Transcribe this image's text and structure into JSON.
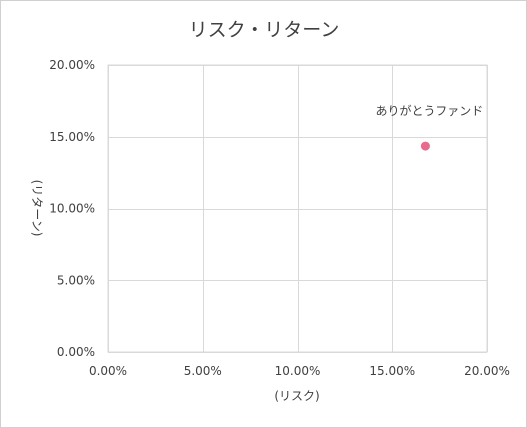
{
  "chart_data": {
    "type": "scatter",
    "title": "リスク・リターン",
    "xlabel": "(リスク)",
    "ylabel": "(リターン)",
    "xlim": [
      0,
      0.2
    ],
    "ylim": [
      0,
      0.2
    ],
    "x_ticks": [
      "0.00%",
      "5.00%",
      "10.00%",
      "15.00%",
      "20.00%"
    ],
    "y_ticks": [
      "0.00%",
      "5.00%",
      "10.00%",
      "15.00%",
      "20.00%"
    ],
    "grid": true,
    "points": [
      {
        "label": "ありがとうファンド",
        "x": 0.1675,
        "y": 0.1435,
        "color": "#e96a8d"
      }
    ]
  }
}
